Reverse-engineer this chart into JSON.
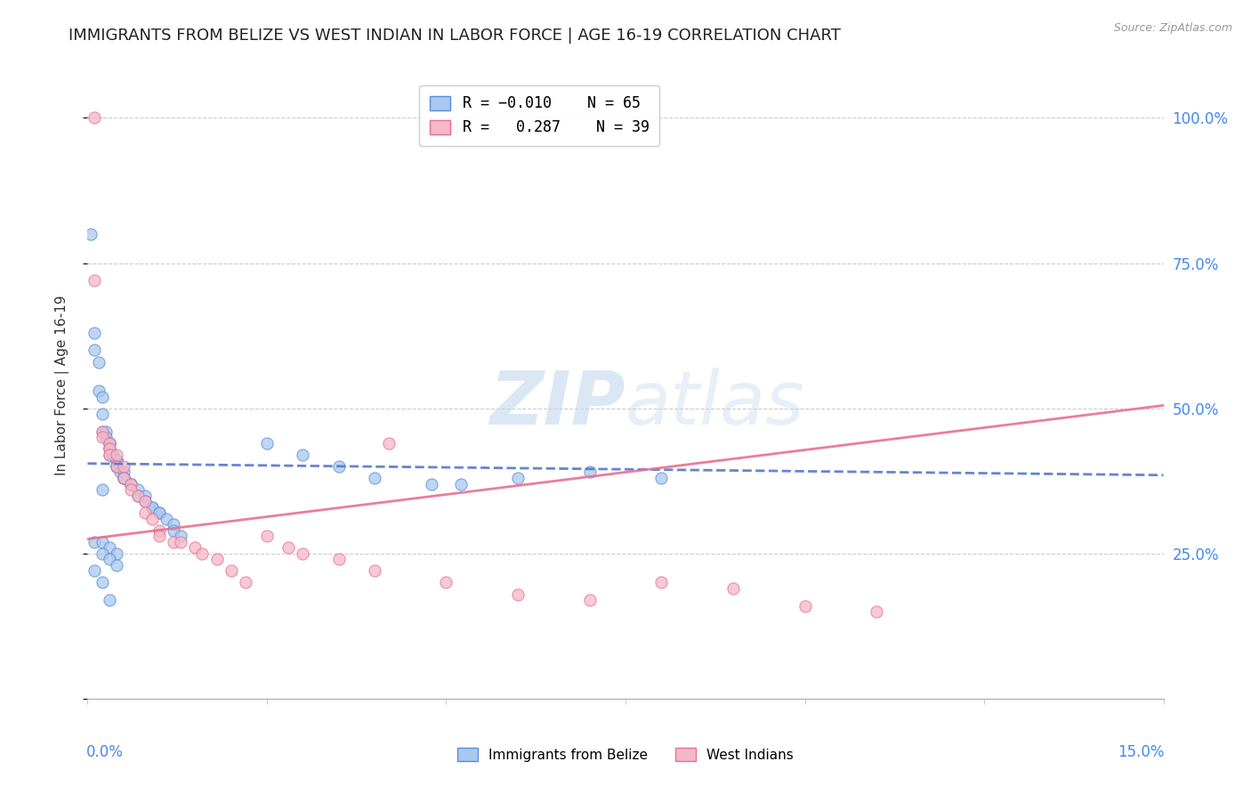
{
  "title": "IMMIGRANTS FROM BELIZE VS WEST INDIAN IN LABOR FORCE | AGE 16-19 CORRELATION CHART",
  "source": "Source: ZipAtlas.com",
  "ylabel": "In Labor Force | Age 16-19",
  "xlim": [
    0.0,
    0.15
  ],
  "ylim": [
    0.0,
    1.08
  ],
  "yticks": [
    0.0,
    0.25,
    0.5,
    0.75,
    1.0
  ],
  "ytick_labels_right": [
    "",
    "25.0%",
    "50.0%",
    "75.0%",
    "100.0%"
  ],
  "color_blue": "#a8c8f0",
  "color_blue_edge": "#5b8fd4",
  "color_blue_line": "#5577cc",
  "color_pink": "#f5b8c8",
  "color_pink_edge": "#e87090",
  "color_pink_line": "#e87090",
  "watermark": "ZIPatlas",
  "blue_trend_x0": 0.0,
  "blue_trend_y0": 0.405,
  "blue_trend_x1": 0.15,
  "blue_trend_y1": 0.385,
  "pink_trend_x0": 0.0,
  "pink_trend_y0": 0.275,
  "pink_trend_x1": 0.15,
  "pink_trend_y1": 0.505,
  "blue_x": [
    0.0005,
    0.001,
    0.001,
    0.0015,
    0.0015,
    0.002,
    0.002,
    0.002,
    0.0025,
    0.0025,
    0.003,
    0.003,
    0.003,
    0.003,
    0.003,
    0.003,
    0.0035,
    0.004,
    0.004,
    0.004,
    0.004,
    0.004,
    0.004,
    0.004,
    0.0045,
    0.005,
    0.005,
    0.005,
    0.005,
    0.005,
    0.006,
    0.006,
    0.006,
    0.007,
    0.007,
    0.008,
    0.008,
    0.009,
    0.009,
    0.01,
    0.01,
    0.011,
    0.012,
    0.012,
    0.013,
    0.001,
    0.002,
    0.003,
    0.004,
    0.002,
    0.003,
    0.004,
    0.001,
    0.002,
    0.003,
    0.025,
    0.03,
    0.035,
    0.04,
    0.048,
    0.052,
    0.06,
    0.07,
    0.08,
    0.002
  ],
  "blue_y": [
    0.8,
    0.63,
    0.6,
    0.58,
    0.53,
    0.52,
    0.49,
    0.46,
    0.46,
    0.45,
    0.44,
    0.44,
    0.44,
    0.43,
    0.43,
    0.42,
    0.42,
    0.41,
    0.41,
    0.41,
    0.41,
    0.4,
    0.4,
    0.4,
    0.39,
    0.39,
    0.38,
    0.38,
    0.38,
    0.38,
    0.37,
    0.37,
    0.37,
    0.36,
    0.35,
    0.35,
    0.34,
    0.33,
    0.33,
    0.32,
    0.32,
    0.31,
    0.3,
    0.29,
    0.28,
    0.27,
    0.27,
    0.26,
    0.25,
    0.25,
    0.24,
    0.23,
    0.22,
    0.2,
    0.17,
    0.44,
    0.42,
    0.4,
    0.38,
    0.37,
    0.37,
    0.38,
    0.39,
    0.38,
    0.36
  ],
  "pink_x": [
    0.001,
    0.001,
    0.002,
    0.002,
    0.003,
    0.003,
    0.003,
    0.004,
    0.004,
    0.005,
    0.005,
    0.006,
    0.006,
    0.007,
    0.008,
    0.008,
    0.009,
    0.01,
    0.01,
    0.012,
    0.013,
    0.015,
    0.016,
    0.018,
    0.02,
    0.022,
    0.025,
    0.028,
    0.03,
    0.035,
    0.04,
    0.042,
    0.05,
    0.06,
    0.07,
    0.08,
    0.09,
    0.1,
    0.11
  ],
  "pink_y": [
    1.0,
    0.72,
    0.46,
    0.45,
    0.44,
    0.43,
    0.42,
    0.42,
    0.4,
    0.4,
    0.38,
    0.37,
    0.36,
    0.35,
    0.34,
    0.32,
    0.31,
    0.29,
    0.28,
    0.27,
    0.27,
    0.26,
    0.25,
    0.24,
    0.22,
    0.2,
    0.28,
    0.26,
    0.25,
    0.24,
    0.22,
    0.44,
    0.2,
    0.18,
    0.17,
    0.2,
    0.19,
    0.16,
    0.15
  ]
}
